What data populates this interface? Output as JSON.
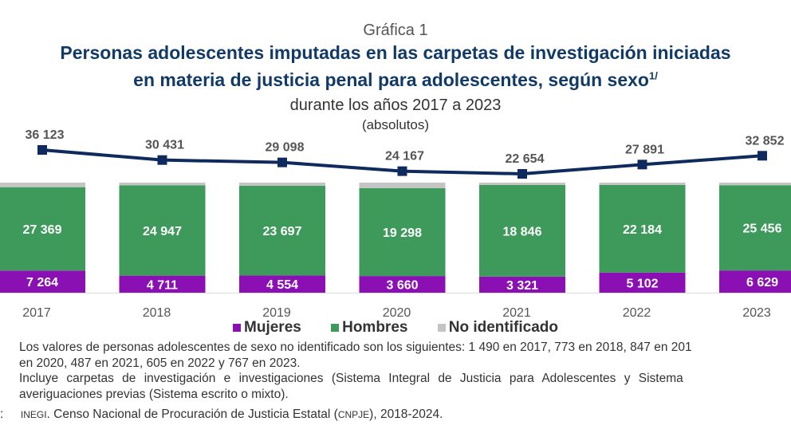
{
  "chart_data": {
    "type": "bar",
    "stacked": "100%",
    "kicker": "Gráfica 1",
    "title_line1": "Personas adolescentes imputadas en las carpetas de investigación iniciadas",
    "title_line2": "en materia de justicia penal para adolescentes, según sexo",
    "title_footnote_mark": "1/",
    "subtitle": "durante los años 2017 a 2023",
    "unit": "(absolutos)",
    "categories": [
      "2017",
      "2018",
      "2019",
      "2020",
      "2021",
      "2022",
      "2023"
    ],
    "series": [
      {
        "name": "Mujeres",
        "color": "#8a10b4",
        "values": [
          7264,
          4711,
          4554,
          3660,
          3321,
          5102,
          6629
        ],
        "labels": [
          "7 264",
          "4 711",
          "4 554",
          "3 660",
          "3 321",
          "5 102",
          "6 629"
        ]
      },
      {
        "name": "Hombres",
        "color": "#3e9a5a",
        "values": [
          27369,
          24947,
          23697,
          19298,
          18846,
          22184,
          25456
        ],
        "labels": [
          "27 369",
          "24 947",
          "23 697",
          "19 298",
          "18 846",
          "22 184",
          "25 456"
        ]
      },
      {
        "name": "No identificado",
        "color": "#c4c4c4"
      }
    ],
    "total_line": {
      "color": "#0f2a5c",
      "values": [
        36123,
        30431,
        29098,
        24167,
        22654,
        27891,
        32852
      ],
      "labels": [
        "36 123",
        "30 431",
        "29 098",
        "24 167",
        "22 654",
        "27 891",
        "32 852"
      ]
    },
    "legend_position": "bottom",
    "grid": false
  },
  "notes": {
    "line1": "Los valores de personas adolescentes de sexo no identificado son los siguientes: 1 490 en 2017, 773 en 2018, 847 en 201",
    "line2": "en 2020, 487 en 2021, 605 en 2022 y 767 en 2023.",
    "line3": "Incluye carpetas de investigación e investigaciones (Sistema Integral de Justicia para Adolescentes y Sistema",
    "line4": "averiguaciones previas (Sistema escrito o mixto).",
    "source_prefix": ":",
    "source_org": "INEGI",
    "source_text1": ". Censo Nacional de Procuración de Justicia Estatal (",
    "source_abbr": "CNPJE",
    "source_text2": "), 2018-2024."
  }
}
